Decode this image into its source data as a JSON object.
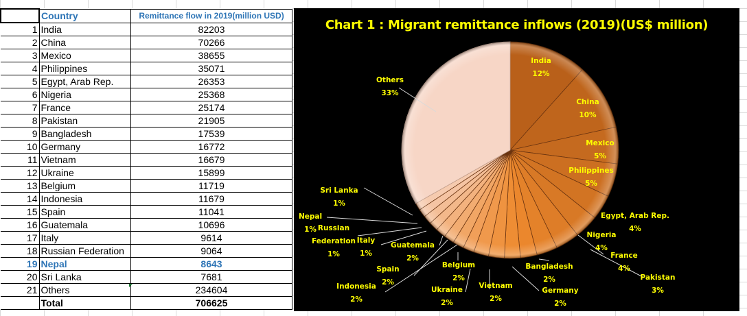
{
  "table": {
    "headers": {
      "country": "Country",
      "value": "Remittance flow in 2019(million USD)"
    },
    "rows": [
      {
        "index": "1",
        "country": "India",
        "value": "82203"
      },
      {
        "index": "2",
        "country": "China",
        "value": "70266"
      },
      {
        "index": "3",
        "country": "Mexico",
        "value": "38655"
      },
      {
        "index": "4",
        "country": "Philippines",
        "value": "35071"
      },
      {
        "index": "5",
        "country": "Egypt, Arab Rep.",
        "value": "26353"
      },
      {
        "index": "6",
        "country": "Nigeria",
        "value": "25368"
      },
      {
        "index": "7",
        "country": "France",
        "value": "25174"
      },
      {
        "index": "8",
        "country": "Pakistan",
        "value": "21905"
      },
      {
        "index": "9",
        "country": "Bangladesh",
        "value": "17539"
      },
      {
        "index": "10",
        "country": "Germany",
        "value": "16772"
      },
      {
        "index": "11",
        "country": "Vietnam",
        "value": "16679"
      },
      {
        "index": "12",
        "country": "Ukraine",
        "value": "15899"
      },
      {
        "index": "13",
        "country": "Belgium",
        "value": "11719"
      },
      {
        "index": "14",
        "country": "Indonesia",
        "value": "11679"
      },
      {
        "index": "15",
        "country": "Spain",
        "value": "11041"
      },
      {
        "index": "16",
        "country": "Guatemala",
        "value": "10696"
      },
      {
        "index": "17",
        "country": "Italy",
        "value": "9614"
      },
      {
        "index": "18",
        "country": "Russian Federation",
        "value": "9064"
      },
      {
        "index": "19",
        "country": "Nepal",
        "value": "8643",
        "highlight": true
      },
      {
        "index": "20",
        "country": "Sri Lanka",
        "value": "7681"
      },
      {
        "index": "21",
        "country": "Others",
        "value": "234604"
      }
    ],
    "total": {
      "label": "Total",
      "value": "706625"
    },
    "highlight_color": "#2e75b6"
  },
  "chart_data": {
    "type": "pie",
    "title": "Chart 1 : Migrant remittance inflows (2019)(US$ million)",
    "categories": [
      "India",
      "China",
      "Mexico",
      "Philippines",
      "Egypt, Arab Rep.",
      "Nigeria",
      "France",
      "Pakistan",
      "Bangladesh",
      "Germany",
      "Vietnam",
      "Ukraine",
      "Belgium",
      "Indonesia",
      "Spain",
      "Guatemala",
      "Italy",
      "Russian Federation",
      "Nepal",
      "Sri Lanka",
      "Others"
    ],
    "values": [
      82203,
      70266,
      38655,
      35071,
      26353,
      25368,
      25174,
      21905,
      17539,
      16772,
      16679,
      15899,
      11719,
      11679,
      11041,
      10696,
      9614,
      9064,
      8643,
      7681,
      234604
    ],
    "percent_labels": [
      "12%",
      "10%",
      "5%",
      "5%",
      "4%",
      "4%",
      "4%",
      "3%",
      "2%",
      "2%",
      "2%",
      "2%",
      "2%",
      "2%",
      "2%",
      "2%",
      "1%",
      "1%",
      "1%",
      "1%",
      "33%"
    ],
    "data_labels": [
      {
        "name": "India",
        "pct": "12%"
      },
      {
        "name": "China",
        "pct": "10%"
      },
      {
        "name": "Mexico",
        "pct": "5%"
      },
      {
        "name": "Philippines",
        "pct": "5%"
      },
      {
        "name": "Egypt, Arab Rep.",
        "pct": "4%"
      },
      {
        "name": "Nigeria",
        "pct": "4%"
      },
      {
        "name": "France",
        "pct": "4%"
      },
      {
        "name": "Pakistan",
        "pct": "3%"
      },
      {
        "name": "Bangladesh",
        "pct": "2%"
      },
      {
        "name": "Germany",
        "pct": "2%"
      },
      {
        "name": "Vietnam",
        "pct": "2%"
      },
      {
        "name": "Ukraine",
        "pct": "2%"
      },
      {
        "name": "Belgium",
        "pct": "2%"
      },
      {
        "name": "Indonesia",
        "pct": "2%"
      },
      {
        "name": "Spain",
        "pct": "2%"
      },
      {
        "name": "Guatemala",
        "pct": "2%"
      },
      {
        "name": "Italy",
        "pct": "1%"
      },
      {
        "name": "Russian\nFederation",
        "pct": "1%"
      },
      {
        "name": "Nepal",
        "pct": "1%"
      },
      {
        "name": "Sri Lanka",
        "pct": "1%"
      },
      {
        "name": "Others",
        "pct": "33%"
      }
    ],
    "start_angle_deg": 0,
    "direction": "clockwise",
    "legend": "none",
    "background": "#000000",
    "label_color": "#ffff00",
    "slice_colors": {
      "dark": "#b9601a",
      "mid": "#ee8a2e",
      "light": "#f7d6c6"
    }
  }
}
